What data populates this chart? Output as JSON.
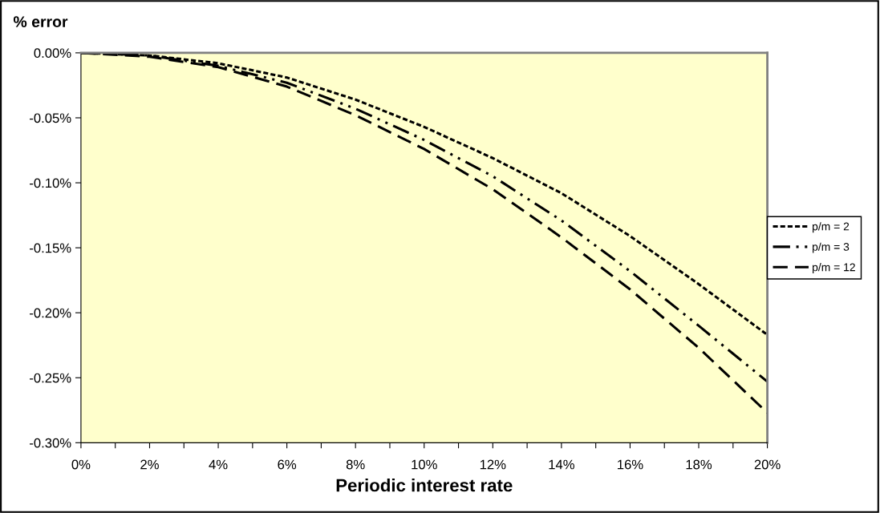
{
  "chart_data": {
    "type": "line",
    "ylabel": "% error",
    "xlabel": "Periodic interest rate",
    "x": [
      0,
      2,
      4,
      6,
      8,
      10,
      12,
      14,
      16,
      18,
      20
    ],
    "series": [
      {
        "name": "p/m = 2",
        "color": "#000000",
        "line_style": "dotted",
        "values": [
          0,
          -0.002,
          -0.008,
          -0.019,
          -0.036,
          -0.057,
          -0.081,
          -0.108,
          -0.141,
          -0.178,
          -0.217
        ]
      },
      {
        "name": "p/m = 3",
        "color": "#000000",
        "line_style": "dashdotdot",
        "values": [
          0,
          -0.002,
          -0.01,
          -0.023,
          -0.043,
          -0.067,
          -0.095,
          -0.129,
          -0.168,
          -0.21,
          -0.253
        ]
      },
      {
        "name": "p/m = 12",
        "color": "#000000",
        "line_style": "dashed",
        "values": [
          0,
          -0.003,
          -0.011,
          -0.026,
          -0.048,
          -0.074,
          -0.105,
          -0.142,
          -0.182,
          -0.227,
          -0.277
        ]
      }
    ],
    "xlim": [
      0,
      20
    ],
    "xticks": [
      {
        "value": 0,
        "label": "0%"
      },
      {
        "value": 1,
        "label": null
      },
      {
        "value": 2,
        "label": "2%"
      },
      {
        "value": 3,
        "label": null
      },
      {
        "value": 4,
        "label": "4%"
      },
      {
        "value": 5,
        "label": null
      },
      {
        "value": 6,
        "label": "6%"
      },
      {
        "value": 7,
        "label": null
      },
      {
        "value": 8,
        "label": "8%"
      },
      {
        "value": 9,
        "label": null
      },
      {
        "value": 10,
        "label": "10%"
      },
      {
        "value": 11,
        "label": null
      },
      {
        "value": 12,
        "label": "12%"
      },
      {
        "value": 13,
        "label": null
      },
      {
        "value": 14,
        "label": "14%"
      },
      {
        "value": 15,
        "label": null
      },
      {
        "value": 16,
        "label": "16%"
      },
      {
        "value": 17,
        "label": null
      },
      {
        "value": 18,
        "label": "18%"
      },
      {
        "value": 19,
        "label": null
      },
      {
        "value": 20,
        "label": "20%"
      }
    ],
    "ylim": [
      -0.3,
      0
    ],
    "yticks": [
      {
        "value": 0,
        "label": "0.00%"
      },
      {
        "value": -0.05,
        "label": "-0.05%"
      },
      {
        "value": -0.1,
        "label": "-0.10%"
      },
      {
        "value": -0.15,
        "label": "-0.15%"
      },
      {
        "value": -0.2,
        "label": "-0.20%"
      },
      {
        "value": -0.25,
        "label": "-0.25%"
      },
      {
        "value": -0.3,
        "label": "-0.30%"
      }
    ],
    "grid": false,
    "legend": "right",
    "marker": "none"
  }
}
